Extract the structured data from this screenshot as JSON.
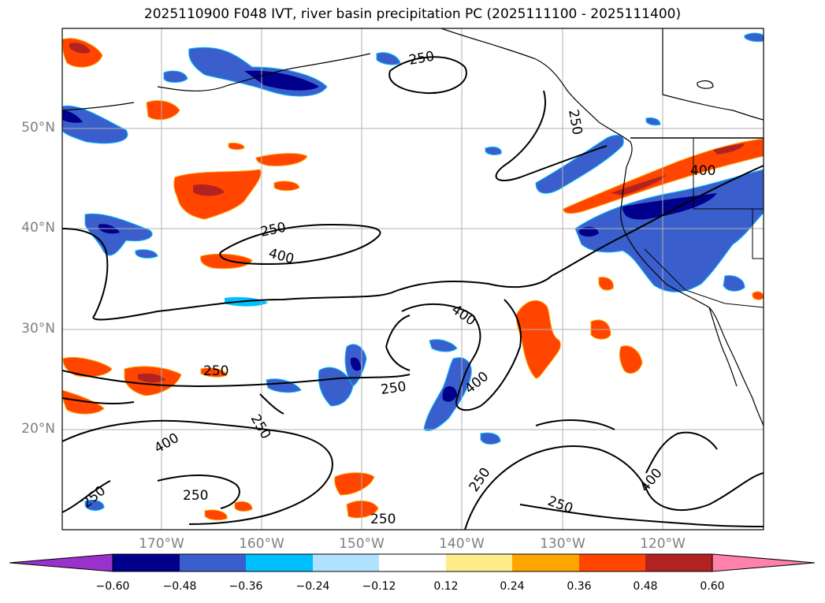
{
  "title": "2025110900 F048 IVT, river basin precipitation PC (2025111100 - 2025111400)",
  "lat_labels": [
    "50°N",
    "40°N",
    "30°N",
    "20°N"
  ],
  "lon_labels": [
    "170°W",
    "160°W",
    "150°W",
    "140°W",
    "130°W",
    "120°W"
  ],
  "contour_labels": [
    "250",
    "250",
    "400",
    "250",
    "400",
    "400",
    "250",
    "250",
    "400",
    "250",
    "400",
    "250",
    "250",
    "250",
    "250",
    "400",
    "250"
  ],
  "colorbar": {
    "colors": [
      "#9932cc",
      "#00008b",
      "#3a5fcd",
      "#00bfff",
      "#b0e2ff",
      "#ffffff",
      "#ffec8b",
      "#ffa500",
      "#ff4500",
      "#b22222",
      "#ff82ab"
    ],
    "ticks": [
      "−0.60",
      "−0.48",
      "−0.36",
      "−0.24",
      "−0.12",
      "0.12",
      "0.24",
      "0.36",
      "0.48",
      "0.60"
    ]
  }
}
